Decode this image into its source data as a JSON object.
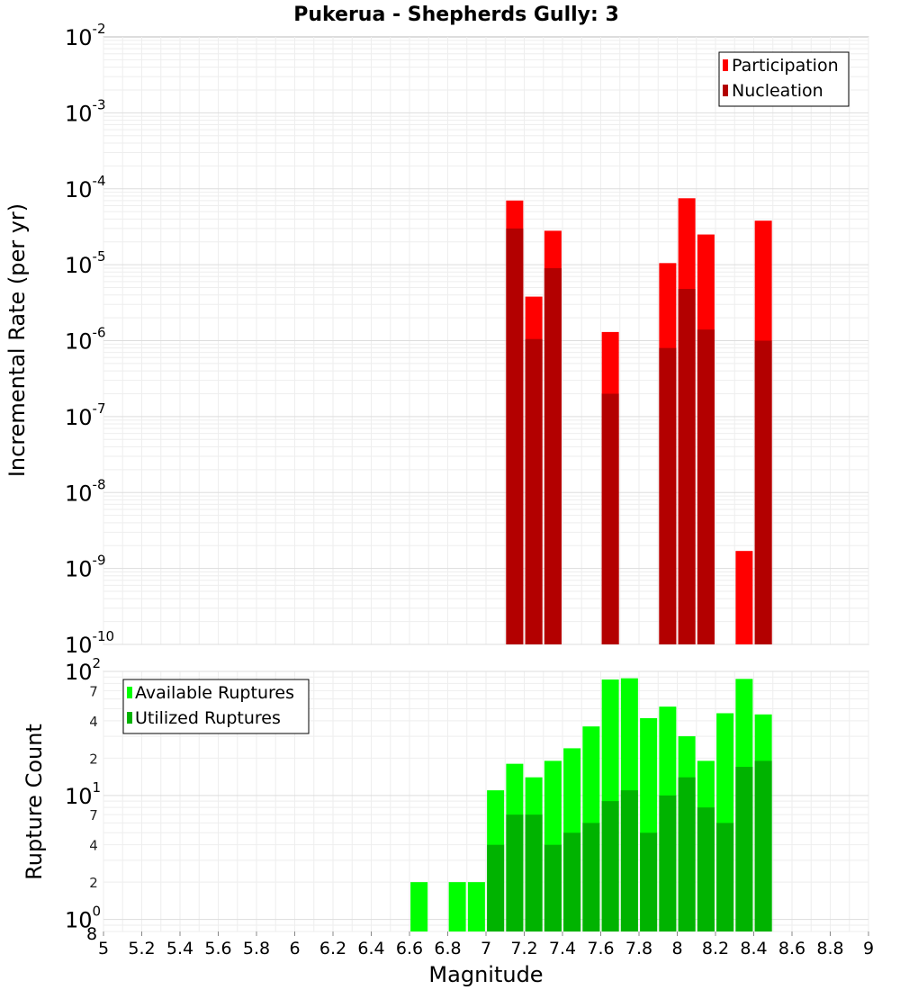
{
  "chart_data": [
    {
      "type": "bar",
      "title": "Pukerua - Shepherds Gully: 3",
      "ylabel": "Incremental Rate (per yr)",
      "yscale": "log",
      "ylim": [
        1e-10,
        0.01
      ],
      "y_ticks": [
        {
          "base": "10",
          "exp": "-10",
          "value": 1e-10
        },
        {
          "base": "10",
          "exp": "-9",
          "value": 1e-09
        },
        {
          "base": "10",
          "exp": "-8",
          "value": 1e-08
        },
        {
          "base": "10",
          "exp": "-7",
          "value": 1e-07
        },
        {
          "base": "10",
          "exp": "-6",
          "value": 1e-06
        },
        {
          "base": "10",
          "exp": "-5",
          "value": 1e-05
        },
        {
          "base": "10",
          "exp": "-4",
          "value": 0.0001
        },
        {
          "base": "10",
          "exp": "-3",
          "value": 0.001
        },
        {
          "base": "10",
          "exp": "-2",
          "value": 0.01
        }
      ],
      "legend_position": "top-right",
      "legend": [
        {
          "name": "Participation",
          "color": "#ff0000"
        },
        {
          "name": "Nucleation",
          "color": "#b30000"
        }
      ],
      "series": [
        {
          "name": "Participation",
          "color": "#ff0000",
          "x": [
            7.15,
            7.25,
            7.35,
            7.65,
            7.95,
            8.05,
            8.15,
            8.35,
            8.45
          ],
          "values": [
            7e-05,
            3.8e-06,
            2.8e-05,
            1.3e-06,
            1.05e-05,
            7.5e-05,
            2.5e-05,
            1.7e-09,
            3.8e-05
          ]
        },
        {
          "name": "Nucleation",
          "color": "#b30000",
          "x": [
            7.15,
            7.25,
            7.35,
            7.65,
            7.95,
            8.05,
            8.15,
            8.45
          ],
          "values": [
            3e-05,
            1.05e-06,
            9e-06,
            2e-07,
            8e-07,
            4.8e-06,
            1.4e-06,
            1e-06
          ]
        }
      ]
    },
    {
      "type": "bar",
      "xlabel": "Magnitude",
      "ylabel": "Rupture Count",
      "yscale": "log",
      "ylim": [
        0.8,
        100
      ],
      "xlim": [
        5,
        9
      ],
      "x_ticks": [
        "5",
        "5.2",
        "5.4",
        "5.6",
        "5.8",
        "6",
        "6.2",
        "6.4",
        "6.6",
        "6.8",
        "7",
        "7.2",
        "7.4",
        "7.6",
        "7.8",
        "8",
        "8.2",
        "8.4",
        "8.6",
        "8.8",
        "9"
      ],
      "y_major_ticks": [
        {
          "base": "10",
          "exp": "0",
          "value": 1
        },
        {
          "base": "10",
          "exp": "1",
          "value": 10
        },
        {
          "base": "10",
          "exp": "2",
          "value": 100
        }
      ],
      "y_minor_ticks": [
        {
          "label": "8",
          "value": 0.8
        },
        {
          "label": "2",
          "value": 2
        },
        {
          "label": "4",
          "value": 4
        },
        {
          "label": "7",
          "value": 7
        },
        {
          "label": "2",
          "value": 20
        },
        {
          "label": "4",
          "value": 40
        },
        {
          "label": "7",
          "value": 70
        }
      ],
      "legend_position": "top-left",
      "legend": [
        {
          "name": "Available Ruptures",
          "color": "#00ff00"
        },
        {
          "name": "Utilized Ruptures",
          "color": "#00b300"
        }
      ],
      "series": [
        {
          "name": "Available Ruptures",
          "color": "#00ff00",
          "x": [
            6.65,
            6.85,
            6.95,
            7.05,
            7.15,
            7.25,
            7.35,
            7.45,
            7.55,
            7.65,
            7.75,
            7.85,
            7.95,
            8.05,
            8.15,
            8.25,
            8.35,
            8.45
          ],
          "values": [
            2,
            2,
            2,
            11,
            18,
            14,
            19,
            24,
            36,
            86,
            88,
            42,
            52,
            30,
            19,
            46,
            87,
            45
          ]
        },
        {
          "name": "Utilized Ruptures",
          "color": "#00b300",
          "x": [
            7.05,
            7.15,
            7.25,
            7.35,
            7.45,
            7.55,
            7.65,
            7.75,
            7.85,
            7.95,
            8.05,
            8.15,
            8.25,
            8.35,
            8.45
          ],
          "values": [
            4,
            7,
            7,
            4,
            5,
            6,
            9,
            11,
            5,
            10,
            14,
            8,
            6,
            17,
            19
          ]
        }
      ]
    }
  ]
}
